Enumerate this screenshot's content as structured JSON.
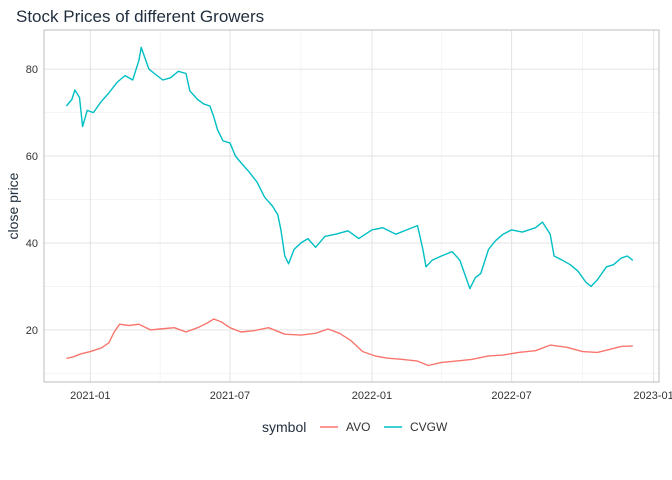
{
  "chart_data": {
    "type": "line",
    "title": "Stock Prices of different Growers",
    "xlabel": "",
    "ylabel": "close price",
    "x_ticks": [
      "2021-01",
      "2021-07",
      "2022-01",
      "2022-07",
      "2023-01"
    ],
    "y_ticks": [
      20,
      40,
      60,
      80
    ],
    "xlim": [
      "2020-11-02",
      "2023-01-08"
    ],
    "ylim": [
      8,
      89
    ],
    "grid": true,
    "legend": {
      "title": "symbol",
      "placement": "bottom"
    },
    "series": [
      {
        "name": "AVO",
        "color": "#F8766D",
        "points": [
          [
            "2020-12-01",
            13.4
          ],
          [
            "2020-12-10",
            13.8
          ],
          [
            "2020-12-20",
            14.5
          ],
          [
            "2021-01-01",
            15.0
          ],
          [
            "2021-01-15",
            15.8
          ],
          [
            "2021-01-25",
            17.0
          ],
          [
            "2021-02-01",
            19.5
          ],
          [
            "2021-02-08",
            21.3
          ],
          [
            "2021-02-20",
            21.0
          ],
          [
            "2021-03-05",
            21.3
          ],
          [
            "2021-03-20",
            20.0
          ],
          [
            "2021-04-01",
            20.2
          ],
          [
            "2021-04-20",
            20.5
          ],
          [
            "2021-05-05",
            19.5
          ],
          [
            "2021-05-20",
            20.5
          ],
          [
            "2021-06-01",
            21.5
          ],
          [
            "2021-06-10",
            22.5
          ],
          [
            "2021-06-20",
            21.8
          ],
          [
            "2021-07-01",
            20.5
          ],
          [
            "2021-07-15",
            19.5
          ],
          [
            "2021-08-01",
            19.8
          ],
          [
            "2021-08-20",
            20.5
          ],
          [
            "2021-09-10",
            19.0
          ],
          [
            "2021-10-01",
            18.8
          ],
          [
            "2021-10-20",
            19.2
          ],
          [
            "2021-11-05",
            20.2
          ],
          [
            "2021-11-20",
            19.2
          ],
          [
            "2021-12-05",
            17.5
          ],
          [
            "2021-12-20",
            15.0
          ],
          [
            "2022-01-05",
            14.0
          ],
          [
            "2022-01-20",
            13.5
          ],
          [
            "2022-02-10",
            13.2
          ],
          [
            "2022-03-01",
            12.8
          ],
          [
            "2022-03-15",
            11.8
          ],
          [
            "2022-04-01",
            12.5
          ],
          [
            "2022-04-20",
            12.8
          ],
          [
            "2022-05-10",
            13.2
          ],
          [
            "2022-06-01",
            14.0
          ],
          [
            "2022-06-20",
            14.2
          ],
          [
            "2022-07-10",
            14.8
          ],
          [
            "2022-08-01",
            15.2
          ],
          [
            "2022-08-20",
            16.5
          ],
          [
            "2022-09-10",
            16.0
          ],
          [
            "2022-10-01",
            15.0
          ],
          [
            "2022-10-20",
            14.8
          ],
          [
            "2022-11-05",
            15.5
          ],
          [
            "2022-11-20",
            16.2
          ],
          [
            "2022-12-05",
            16.3
          ]
        ]
      },
      {
        "name": "CVGW",
        "color": "#00BFC4",
        "points": [
          [
            "2020-12-01",
            71.5
          ],
          [
            "2020-12-08",
            73.0
          ],
          [
            "2020-12-12",
            75.2
          ],
          [
            "2020-12-18",
            73.5
          ],
          [
            "2020-12-22",
            66.8
          ],
          [
            "2020-12-28",
            70.5
          ],
          [
            "2021-01-05",
            70.0
          ],
          [
            "2021-01-15",
            72.5
          ],
          [
            "2021-01-25",
            74.5
          ],
          [
            "2021-02-05",
            77.0
          ],
          [
            "2021-02-15",
            78.5
          ],
          [
            "2021-02-25",
            77.5
          ],
          [
            "2021-03-05",
            82.0
          ],
          [
            "2021-03-08",
            85.0
          ],
          [
            "2021-03-12",
            83.0
          ],
          [
            "2021-03-18",
            80.0
          ],
          [
            "2021-03-25",
            79.0
          ],
          [
            "2021-04-05",
            77.5
          ],
          [
            "2021-04-15",
            78.0
          ],
          [
            "2021-04-25",
            79.5
          ],
          [
            "2021-05-05",
            79.0
          ],
          [
            "2021-05-10",
            75.0
          ],
          [
            "2021-05-20",
            73.0
          ],
          [
            "2021-05-28",
            72.0
          ],
          [
            "2021-06-05",
            71.5
          ],
          [
            "2021-06-10",
            69.0
          ],
          [
            "2021-06-15",
            66.0
          ],
          [
            "2021-06-22",
            63.5
          ],
          [
            "2021-07-01",
            63.0
          ],
          [
            "2021-07-08",
            60.0
          ],
          [
            "2021-07-15",
            58.5
          ],
          [
            "2021-07-25",
            56.5
          ],
          [
            "2021-08-05",
            54.0
          ],
          [
            "2021-08-15",
            50.5
          ],
          [
            "2021-08-25",
            48.5
          ],
          [
            "2021-09-01",
            46.5
          ],
          [
            "2021-09-05",
            43.0
          ],
          [
            "2021-09-10",
            37.0
          ],
          [
            "2021-09-15",
            35.2
          ],
          [
            "2021-09-22",
            38.5
          ],
          [
            "2021-10-01",
            40.0
          ],
          [
            "2021-10-10",
            41.0
          ],
          [
            "2021-10-20",
            39.0
          ],
          [
            "2021-11-01",
            41.5
          ],
          [
            "2021-11-15",
            42.0
          ],
          [
            "2021-12-01",
            42.8
          ],
          [
            "2021-12-15",
            41.0
          ],
          [
            "2022-01-01",
            43.0
          ],
          [
            "2022-01-15",
            43.5
          ],
          [
            "2022-02-01",
            42.0
          ],
          [
            "2022-02-15",
            43.0
          ],
          [
            "2022-03-01",
            44.0
          ],
          [
            "2022-03-08",
            38.5
          ],
          [
            "2022-03-12",
            34.5
          ],
          [
            "2022-03-20",
            36.0
          ],
          [
            "2022-04-01",
            37.0
          ],
          [
            "2022-04-15",
            38.0
          ],
          [
            "2022-04-25",
            36.0
          ],
          [
            "2022-05-01",
            33.0
          ],
          [
            "2022-05-08",
            29.5
          ],
          [
            "2022-05-15",
            32.0
          ],
          [
            "2022-05-22",
            33.0
          ],
          [
            "2022-06-01",
            38.5
          ],
          [
            "2022-06-10",
            40.5
          ],
          [
            "2022-06-20",
            42.0
          ],
          [
            "2022-07-01",
            43.0
          ],
          [
            "2022-07-15",
            42.5
          ],
          [
            "2022-08-01",
            43.5
          ],
          [
            "2022-08-10",
            44.8
          ],
          [
            "2022-08-20",
            42.0
          ],
          [
            "2022-08-25",
            37.0
          ],
          [
            "2022-09-05",
            36.0
          ],
          [
            "2022-09-15",
            35.0
          ],
          [
            "2022-09-25",
            33.5
          ],
          [
            "2022-10-05",
            31.0
          ],
          [
            "2022-10-12",
            30.0
          ],
          [
            "2022-10-20",
            31.5
          ],
          [
            "2022-11-01",
            34.5
          ],
          [
            "2022-11-10",
            35.0
          ],
          [
            "2022-11-20",
            36.5
          ],
          [
            "2022-11-28",
            37.0
          ],
          [
            "2022-12-05",
            36.0
          ]
        ]
      }
    ]
  }
}
